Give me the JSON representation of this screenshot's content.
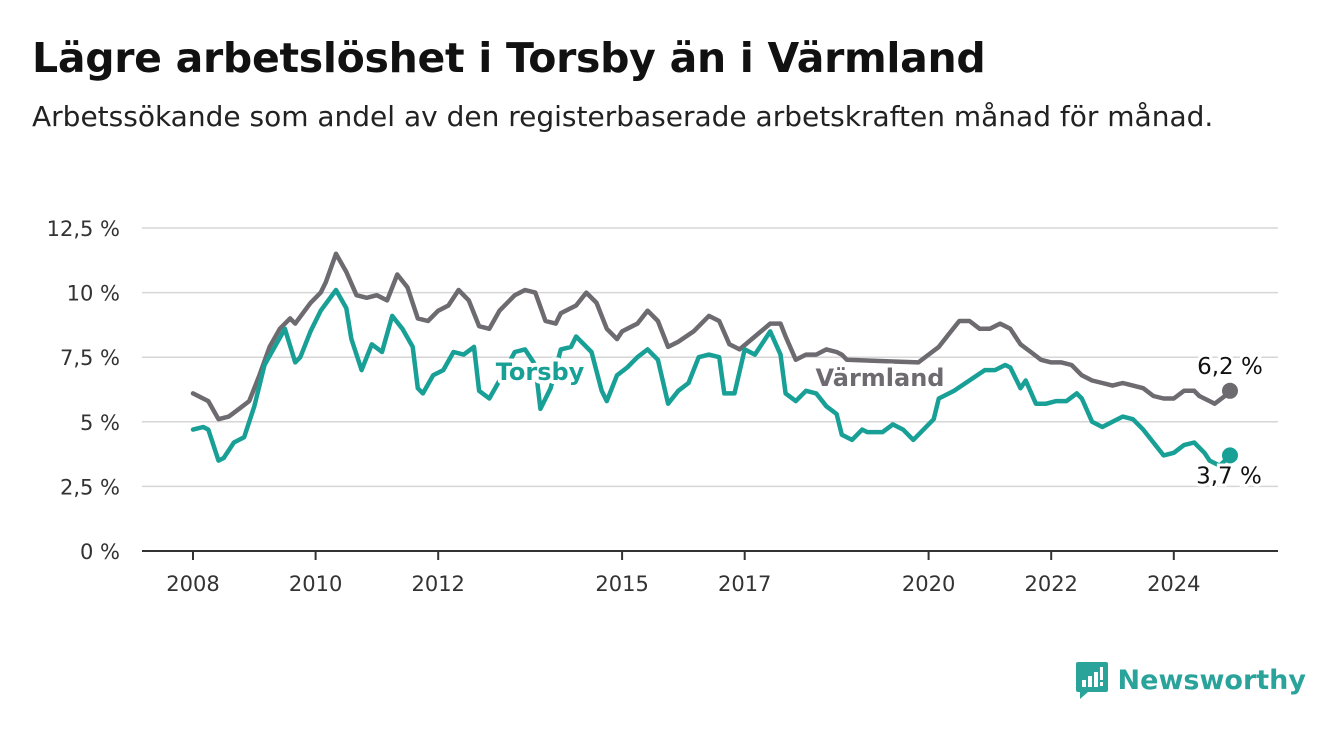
{
  "header": {
    "title": "Lägre arbetslöshet i Torsby än i Värmland",
    "subtitle": "Arbetssökande som andel av den registerbaserade arbetskraften månad för månad."
  },
  "brand": {
    "name": "Newsworthy",
    "icon": "newsworthy-logo-icon",
    "color": "#2aa39b"
  },
  "chart_data": {
    "type": "line",
    "title": "Lägre arbetslöshet i Torsby än i Värmland",
    "subtitle": "Arbetssökande som andel av den registerbaserade arbetskraften månad för månad.",
    "xlabel": "",
    "ylabel": "",
    "x_range": [
      "2008-01",
      "2024-12"
    ],
    "ylim": [
      0,
      12.5
    ],
    "y_ticks": [
      {
        "value": 0,
        "label": "0 %"
      },
      {
        "value": 2.5,
        "label": "2,5 %"
      },
      {
        "value": 5,
        "label": "5 %"
      },
      {
        "value": 7.5,
        "label": "7,5 %"
      },
      {
        "value": 10,
        "label": "10 %"
      },
      {
        "value": 12.5,
        "label": "12,5 %"
      }
    ],
    "x_ticks": [
      "2008",
      "2010",
      "2012",
      "2015",
      "2017",
      "2020",
      "2022",
      "2024"
    ],
    "grid": true,
    "legend": "direct labels on lines",
    "series": [
      {
        "name": "Värmland",
        "color": "#6d6a70",
        "end_label": "6,2 %",
        "points": [
          [
            "2008-01",
            6.1
          ],
          [
            "2008-04",
            5.8
          ],
          [
            "2008-06",
            5.1
          ],
          [
            "2008-08",
            5.2
          ],
          [
            "2008-10",
            5.5
          ],
          [
            "2008-12",
            5.8
          ],
          [
            "2009-02",
            6.8
          ],
          [
            "2009-04",
            7.9
          ],
          [
            "2009-06",
            8.6
          ],
          [
            "2009-08",
            9.0
          ],
          [
            "2009-09",
            8.8
          ],
          [
            "2009-12",
            9.6
          ],
          [
            "2010-02",
            10.0
          ],
          [
            "2010-03",
            10.4
          ],
          [
            "2010-05",
            11.5
          ],
          [
            "2010-07",
            10.8
          ],
          [
            "2010-09",
            9.9
          ],
          [
            "2010-11",
            9.8
          ],
          [
            "2011-01",
            9.9
          ],
          [
            "2011-03",
            9.7
          ],
          [
            "2011-05",
            10.7
          ],
          [
            "2011-07",
            10.2
          ],
          [
            "2011-09",
            9.0
          ],
          [
            "2011-11",
            8.9
          ],
          [
            "2012-01",
            9.3
          ],
          [
            "2012-03",
            9.5
          ],
          [
            "2012-05",
            10.1
          ],
          [
            "2012-07",
            9.7
          ],
          [
            "2012-09",
            8.7
          ],
          [
            "2012-11",
            8.6
          ],
          [
            "2013-01",
            9.3
          ],
          [
            "2013-04",
            9.9
          ],
          [
            "2013-06",
            10.1
          ],
          [
            "2013-08",
            10.0
          ],
          [
            "2013-10",
            8.9
          ],
          [
            "2013-12",
            8.8
          ],
          [
            "2014-01",
            9.2
          ],
          [
            "2014-04",
            9.5
          ],
          [
            "2014-06",
            10.0
          ],
          [
            "2014-08",
            9.6
          ],
          [
            "2014-10",
            8.6
          ],
          [
            "2014-12",
            8.2
          ],
          [
            "2015-01",
            8.5
          ],
          [
            "2015-04",
            8.8
          ],
          [
            "2015-06",
            9.3
          ],
          [
            "2015-08",
            8.9
          ],
          [
            "2015-10",
            7.9
          ],
          [
            "2015-12",
            8.1
          ],
          [
            "2016-03",
            8.5
          ],
          [
            "2016-06",
            9.1
          ],
          [
            "2016-08",
            8.9
          ],
          [
            "2016-10",
            8.0
          ],
          [
            "2016-12",
            7.8
          ],
          [
            "2017-03",
            8.3
          ],
          [
            "2017-06",
            8.8
          ],
          [
            "2017-08",
            8.8
          ],
          [
            "2017-09",
            8.3
          ],
          [
            "2017-11",
            7.4
          ],
          [
            "2018-01",
            7.6
          ],
          [
            "2018-03",
            7.6
          ],
          [
            "2018-05",
            7.8
          ],
          [
            "2018-07",
            7.7
          ],
          [
            "2018-08",
            7.6
          ],
          [
            "2018-09",
            7.4
          ],
          [
            "2019-11",
            7.3
          ],
          [
            "2020-01",
            7.6
          ],
          [
            "2020-03",
            7.9
          ],
          [
            "2020-05",
            8.4
          ],
          [
            "2020-07",
            8.9
          ],
          [
            "2020-09",
            8.9
          ],
          [
            "2020-11",
            8.6
          ],
          [
            "2021-01",
            8.6
          ],
          [
            "2021-03",
            8.8
          ],
          [
            "2021-05",
            8.6
          ],
          [
            "2021-07",
            8.0
          ],
          [
            "2021-09",
            7.7
          ],
          [
            "2021-11",
            7.4
          ],
          [
            "2022-01",
            7.3
          ],
          [
            "2022-03",
            7.3
          ],
          [
            "2022-05",
            7.2
          ],
          [
            "2022-07",
            6.8
          ],
          [
            "2022-09",
            6.6
          ],
          [
            "2022-11",
            6.5
          ],
          [
            "2023-01",
            6.4
          ],
          [
            "2023-03",
            6.5
          ],
          [
            "2023-05",
            6.4
          ],
          [
            "2023-07",
            6.3
          ],
          [
            "2023-09",
            6.0
          ],
          [
            "2023-11",
            5.9
          ],
          [
            "2024-01",
            5.9
          ],
          [
            "2024-03",
            6.2
          ],
          [
            "2024-05",
            6.2
          ],
          [
            "2024-06",
            6.0
          ],
          [
            "2024-08",
            5.8
          ],
          [
            "2024-09",
            5.7
          ],
          [
            "2024-11",
            6.0
          ],
          [
            "2024-12",
            6.2
          ]
        ]
      },
      {
        "name": "Torsby",
        "color": "#18a097",
        "end_label": "3,7 %",
        "points": [
          [
            "2008-01",
            4.7
          ],
          [
            "2008-03",
            4.8
          ],
          [
            "2008-04",
            4.7
          ],
          [
            "2008-06",
            3.5
          ],
          [
            "2008-07",
            3.6
          ],
          [
            "2008-09",
            4.2
          ],
          [
            "2008-11",
            4.4
          ],
          [
            "2009-01",
            5.6
          ],
          [
            "2009-03",
            7.2
          ],
          [
            "2009-05",
            7.9
          ],
          [
            "2009-07",
            8.6
          ],
          [
            "2009-09",
            7.3
          ],
          [
            "2009-10",
            7.5
          ],
          [
            "2009-12",
            8.5
          ],
          [
            "2010-02",
            9.3
          ],
          [
            "2010-05",
            10.1
          ],
          [
            "2010-07",
            9.4
          ],
          [
            "2010-08",
            8.2
          ],
          [
            "2010-10",
            7.0
          ],
          [
            "2010-12",
            8.0
          ],
          [
            "2011-02",
            7.7
          ],
          [
            "2011-04",
            9.1
          ],
          [
            "2011-06",
            8.6
          ],
          [
            "2011-08",
            7.9
          ],
          [
            "2011-09",
            6.3
          ],
          [
            "2011-10",
            6.1
          ],
          [
            "2011-12",
            6.8
          ],
          [
            "2012-02",
            7.0
          ],
          [
            "2012-04",
            7.7
          ],
          [
            "2012-06",
            7.6
          ],
          [
            "2012-08",
            7.9
          ],
          [
            "2012-09",
            6.2
          ],
          [
            "2012-11",
            5.9
          ],
          [
            "2013-01",
            6.6
          ],
          [
            "2013-04",
            7.7
          ],
          [
            "2013-06",
            7.8
          ],
          [
            "2013-08",
            7.2
          ],
          [
            "2013-09",
            5.5
          ],
          [
            "2013-11",
            6.3
          ],
          [
            "2014-01",
            7.8
          ],
          [
            "2014-03",
            7.9
          ],
          [
            "2014-04",
            8.3
          ],
          [
            "2014-07",
            7.7
          ],
          [
            "2014-09",
            6.2
          ],
          [
            "2014-10",
            5.8
          ],
          [
            "2014-12",
            6.8
          ],
          [
            "2015-02",
            7.1
          ],
          [
            "2015-04",
            7.5
          ],
          [
            "2015-06",
            7.8
          ],
          [
            "2015-08",
            7.4
          ],
          [
            "2015-10",
            5.7
          ],
          [
            "2015-12",
            6.2
          ],
          [
            "2016-02",
            6.5
          ],
          [
            "2016-04",
            7.5
          ],
          [
            "2016-06",
            7.6
          ],
          [
            "2016-08",
            7.5
          ],
          [
            "2016-09",
            6.1
          ],
          [
            "2016-11",
            6.1
          ],
          [
            "2017-01",
            7.8
          ],
          [
            "2017-03",
            7.6
          ],
          [
            "2017-06",
            8.5
          ],
          [
            "2017-08",
            7.6
          ],
          [
            "2017-09",
            6.1
          ],
          [
            "2017-11",
            5.8
          ],
          [
            "2018-01",
            6.2
          ],
          [
            "2018-03",
            6.1
          ],
          [
            "2018-05",
            5.6
          ],
          [
            "2018-07",
            5.3
          ],
          [
            "2018-08",
            4.5
          ],
          [
            "2018-10",
            4.3
          ],
          [
            "2018-12",
            4.7
          ],
          [
            "2019-01",
            4.6
          ],
          [
            "2019-04",
            4.6
          ],
          [
            "2019-06",
            4.9
          ],
          [
            "2019-08",
            4.7
          ],
          [
            "2019-10",
            4.3
          ],
          [
            "2019-12",
            4.7
          ],
          [
            "2020-02",
            5.1
          ],
          [
            "2020-03",
            5.9
          ],
          [
            "2020-05",
            6.1
          ],
          [
            "2020-06",
            6.2
          ],
          [
            "2020-12",
            7.0
          ],
          [
            "2021-02",
            7.0
          ],
          [
            "2021-04",
            7.2
          ],
          [
            "2021-05",
            7.1
          ],
          [
            "2021-07",
            6.3
          ],
          [
            "2021-08",
            6.6
          ],
          [
            "2021-10",
            5.7
          ],
          [
            "2021-12",
            5.7
          ],
          [
            "2022-02",
            5.8
          ],
          [
            "2022-04",
            5.8
          ],
          [
            "2022-06",
            6.1
          ],
          [
            "2022-07",
            5.9
          ],
          [
            "2022-09",
            5.0
          ],
          [
            "2022-11",
            4.8
          ],
          [
            "2023-01",
            5.0
          ],
          [
            "2023-03",
            5.2
          ],
          [
            "2023-05",
            5.1
          ],
          [
            "2023-07",
            4.7
          ],
          [
            "2023-09",
            4.2
          ],
          [
            "2023-11",
            3.7
          ],
          [
            "2024-01",
            3.8
          ],
          [
            "2024-03",
            4.1
          ],
          [
            "2024-05",
            4.2
          ],
          [
            "2024-07",
            3.8
          ],
          [
            "2024-08",
            3.5
          ],
          [
            "2024-10",
            3.3
          ],
          [
            "2024-12",
            3.7
          ]
        ]
      }
    ]
  }
}
